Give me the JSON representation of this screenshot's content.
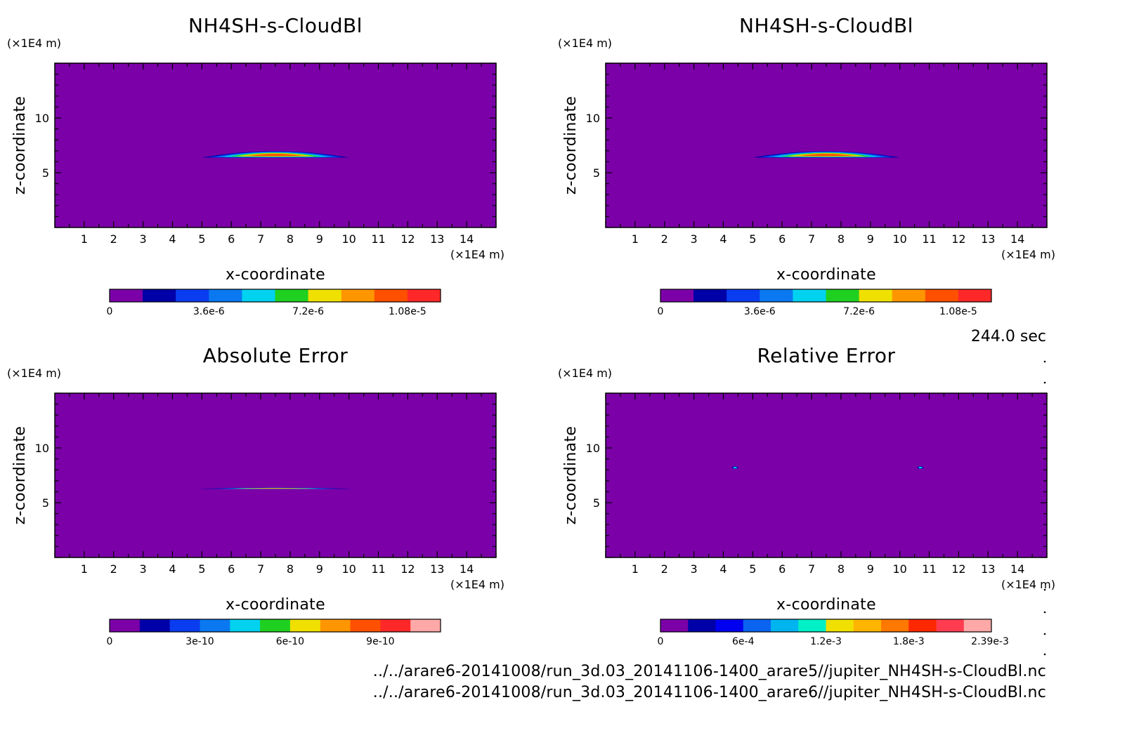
{
  "chart_data": [
    {
      "type": "heatmap",
      "title": "NH4SH-s-CloudBl",
      "xlabel": "x-coordinate",
      "ylabel": "z-coordinate",
      "x_unit": "(×1E4 m)",
      "y_unit": "(×1E4 m)",
      "xlim": [
        0,
        15
      ],
      "ylim": [
        0,
        15
      ],
      "x_ticks": [
        "1",
        "2",
        "3",
        "4",
        "5",
        "6",
        "7",
        "8",
        "9",
        "10",
        "11",
        "12",
        "13",
        "14"
      ],
      "y_ticks": [
        "5",
        "10"
      ],
      "background_color": "#7b00a8",
      "colorbar": {
        "colors": [
          "#7b00a8",
          "#0000a8",
          "#0a3cf0",
          "#0a78f0",
          "#00d2f0",
          "#20d020",
          "#f0e000",
          "#ff9600",
          "#ff5000",
          "#ff2828"
        ],
        "labels": [
          "0",
          "3.6e-6",
          "7.2e-6",
          "1.08e-5"
        ],
        "label_values": [
          0,
          3.6e-06,
          7.2e-06,
          1.08e-05
        ],
        "vmax": 1.2e-05
      },
      "features": [
        {
          "shape": "cloud-layer",
          "x": 7.5,
          "z": 6.6,
          "half_width": 2.5,
          "half_height": 0.6,
          "peak": 1.1e-05
        }
      ]
    },
    {
      "type": "heatmap",
      "title": "NH4SH-s-CloudBl",
      "xlabel": "x-coordinate",
      "ylabel": "z-coordinate",
      "x_unit": "(×1E4 m)",
      "y_unit": "(×1E4 m)",
      "xlim": [
        0,
        15
      ],
      "ylim": [
        0,
        15
      ],
      "x_ticks": [
        "1",
        "2",
        "3",
        "4",
        "5",
        "6",
        "7",
        "8",
        "9",
        "10",
        "11",
        "12",
        "13",
        "14"
      ],
      "y_ticks": [
        "5",
        "10"
      ],
      "background_color": "#7b00a8",
      "colorbar": {
        "colors": [
          "#7b00a8",
          "#0000a8",
          "#0a3cf0",
          "#0a78f0",
          "#00d2f0",
          "#20d020",
          "#f0e000",
          "#ff9600",
          "#ff5000",
          "#ff2828"
        ],
        "labels": [
          "0",
          "3.6e-6",
          "7.2e-6",
          "1.08e-5"
        ],
        "label_values": [
          0,
          3.6e-06,
          7.2e-06,
          1.08e-05
        ],
        "vmax": 1.2e-05
      },
      "features": [
        {
          "shape": "cloud-layer",
          "x": 7.5,
          "z": 6.6,
          "half_width": 2.5,
          "half_height": 0.6,
          "peak": 1.1e-05
        }
      ]
    },
    {
      "type": "heatmap",
      "title": "Absolute Error",
      "xlabel": "x-coordinate",
      "ylabel": "z-coordinate",
      "x_unit": "(×1E4 m)",
      "y_unit": "(×1E4 m)",
      "xlim": [
        0,
        15
      ],
      "ylim": [
        0,
        15
      ],
      "x_ticks": [
        "1",
        "2",
        "3",
        "4",
        "5",
        "6",
        "7",
        "8",
        "9",
        "10",
        "11",
        "12",
        "13",
        "14"
      ],
      "y_ticks": [
        "5",
        "10"
      ],
      "background_color": "#7b00a8",
      "colorbar": {
        "colors": [
          "#7b00a8",
          "#0000a8",
          "#0a3cf0",
          "#0a78f0",
          "#00d2f0",
          "#20d020",
          "#f0e000",
          "#ff9600",
          "#ff5000",
          "#ff2828",
          "#ffa8a8"
        ],
        "labels": [
          "0",
          "3e-10",
          "6e-10",
          "9e-10"
        ],
        "label_values": [
          0,
          3e-10,
          6e-10,
          9e-10
        ],
        "vmax": 1.1e-09
      },
      "features": [
        {
          "shape": "thin-layer",
          "x": 7.5,
          "z": 6.3,
          "half_width": 2.7,
          "half_height": 0.12,
          "peak": 8e-10
        }
      ]
    },
    {
      "type": "heatmap",
      "title": "Relative Error",
      "xlabel": "x-coordinate",
      "ylabel": "z-coordinate",
      "x_unit": "(×1E4 m)",
      "y_unit": "(×1E4 m)",
      "xlim": [
        0,
        15
      ],
      "ylim": [
        0,
        15
      ],
      "x_ticks": [
        "1",
        "2",
        "3",
        "4",
        "5",
        "6",
        "7",
        "8",
        "9",
        "10",
        "11",
        "12",
        "13",
        "14"
      ],
      "y_ticks": [
        "5",
        "10"
      ],
      "background_color": "#7b00a8",
      "colorbar": {
        "colors": [
          "#7b00a8",
          "#0000a8",
          "#0000f0",
          "#0a64f0",
          "#00b4f0",
          "#00f0c8",
          "#f0e000",
          "#ffb400",
          "#ff7800",
          "#ff2800",
          "#ff3c50",
          "#ffa8a8"
        ],
        "labels": [
          "0",
          "6e-4",
          "1.2e-3",
          "1.8e-3",
          "2.39e-3"
        ],
        "label_values": [
          0,
          0.0006,
          0.0012,
          0.0018,
          0.00239
        ],
        "vmax": 0.0024
      },
      "features": [
        {
          "shape": "dot",
          "x": 4.4,
          "z": 8.2,
          "peak": 0.0012
        },
        {
          "shape": "dot",
          "x": 10.7,
          "z": 8.2,
          "peak": 0.0012
        }
      ]
    }
  ],
  "time_label": "244.0 sec",
  "footer": [
    "../../arare6-20141008/run_3d.03_20141106-1400_arare5//jupiter_NH4SH-s-CloudBl.nc",
    "../../arare6-20141008/run_3d.03_20141106-1400_arare6//jupiter_NH4SH-s-CloudBl.nc"
  ]
}
